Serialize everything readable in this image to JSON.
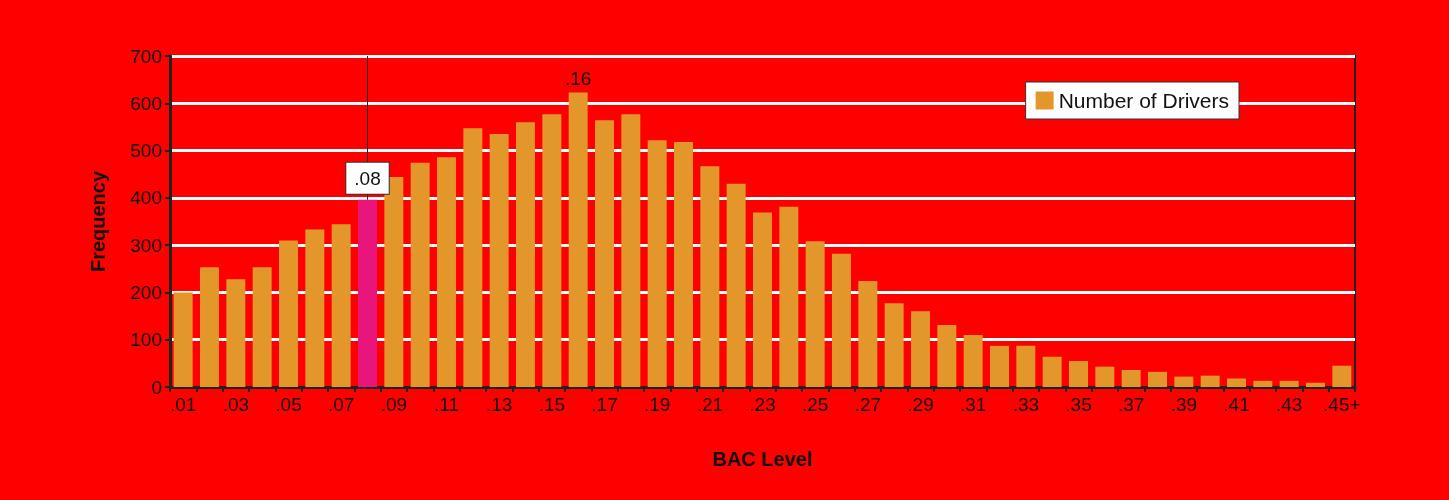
{
  "chart_data": {
    "type": "bar",
    "xlabel": "BAC Level",
    "ylabel": "Frequency",
    "categories": [
      ".01",
      null,
      ".03",
      null,
      ".05",
      null,
      ".07",
      null,
      ".09",
      null,
      ".11",
      null,
      ".13",
      null,
      ".15",
      null,
      ".17",
      null,
      ".19",
      null,
      ".21",
      null,
      ".23",
      null,
      ".25",
      null,
      ".27",
      null,
      ".29",
      null,
      ".31",
      null,
      ".33",
      null,
      ".35",
      null,
      ".37",
      null,
      ".39",
      null,
      ".41",
      null,
      ".43",
      null,
      ".45+"
    ],
    "series": [
      {
        "name": "Number of Drivers",
        "color": "#e3962a",
        "values": [
          200,
          253,
          228,
          253,
          310,
          333,
          344,
          396,
          444,
          474,
          486,
          547,
          535,
          560,
          577,
          623,
          564,
          577,
          522,
          518,
          467,
          430,
          369,
          381,
          308,
          282,
          224,
          177,
          160,
          131,
          110,
          87,
          87,
          64,
          55,
          43,
          36,
          32,
          22,
          24,
          18,
          13,
          13,
          9,
          45
        ],
        "colors": [
          "#e3962a",
          "#e3962a",
          "#e3962a",
          "#e3962a",
          "#e3962a",
          "#e3962a",
          "#e3962a",
          "#e8157a",
          "#e3962a",
          "#e3962a",
          "#e3962a",
          "#e3962a",
          "#e3962a",
          "#e3962a",
          "#e3962a",
          "#e3962a",
          "#e3962a",
          "#e3962a",
          "#e3962a",
          "#e3962a",
          "#e3962a",
          "#e3962a",
          "#e3962a",
          "#e3962a",
          "#e3962a",
          "#e3962a",
          "#e3962a",
          "#e3962a",
          "#e3962a",
          "#e3962a",
          "#e3962a",
          "#e3962a",
          "#e3962a",
          "#e3962a",
          "#e3962a",
          "#e3962a",
          "#e3962a",
          "#e3962a",
          "#e3962a",
          "#e3962a",
          "#e3962a",
          "#e3962a",
          "#e3962a",
          "#e3962a",
          "#e3962a"
        ]
      }
    ],
    "annotations": [
      {
        "text": ".08",
        "y": 396
      },
      {
        "text": ".16",
        "y": 623
      }
    ],
    "ylim": [
      0,
      700
    ],
    "yticks": [
      0,
      100,
      200,
      300,
      400,
      500,
      600,
      700
    ],
    "grid": "y",
    "legend": "top right"
  }
}
